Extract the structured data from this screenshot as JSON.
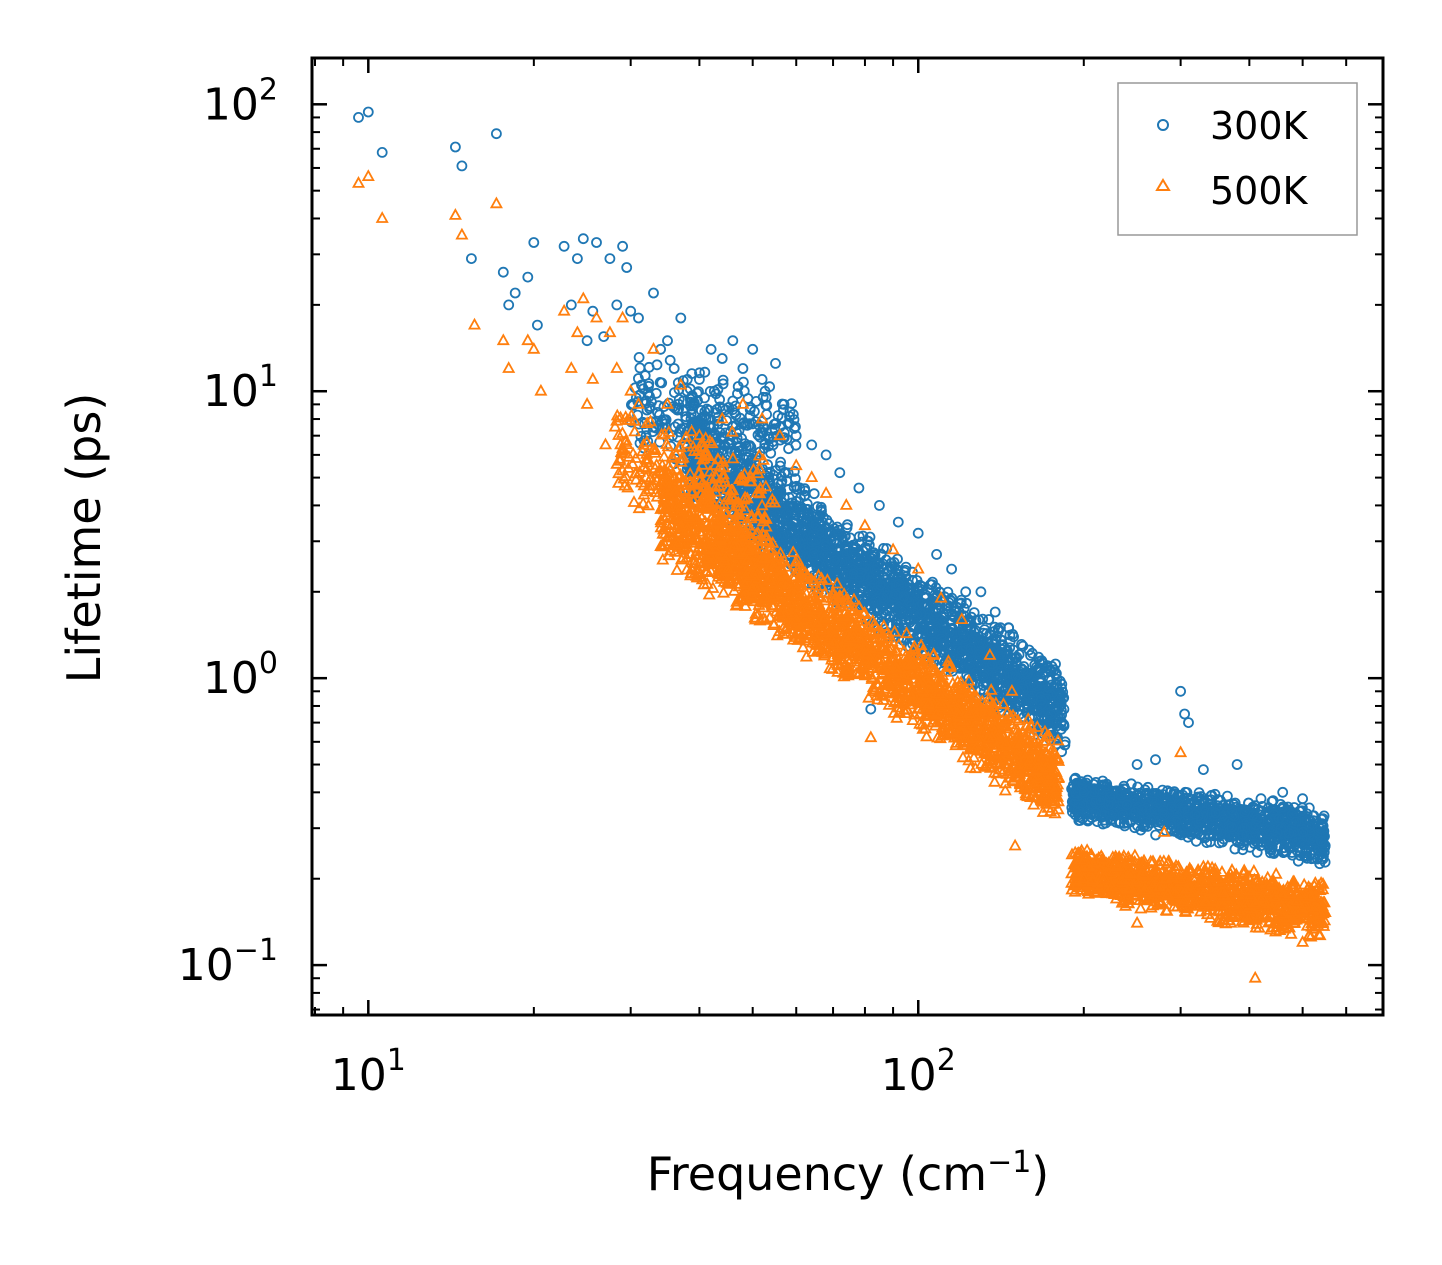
{
  "chart_data": {
    "type": "scatter",
    "xscale": "log",
    "yscale": "log",
    "xlabel": "Frequency (cm",
    "xlabel_sup": "−1",
    "xlabel_close": ")",
    "ylabel": "Lifetime (ps)",
    "xlim": [
      7.9,
      700
    ],
    "ylim": [
      0.067,
      145
    ],
    "x_ticks": [
      {
        "value": 10,
        "base": "10",
        "exp": "1"
      },
      {
        "value": 100,
        "base": "10",
        "exp": "2"
      }
    ],
    "y_ticks": [
      {
        "value": 0.1,
        "base": "10",
        "exp": "−1"
      },
      {
        "value": 1,
        "base": "10",
        "exp": "0"
      },
      {
        "value": 10,
        "base": "10",
        "exp": "1"
      },
      {
        "value": 100,
        "base": "10",
        "exp": "2"
      }
    ],
    "legend_position": "top-right",
    "series": [
      {
        "name": "300K",
        "marker": "circle",
        "color": "#1f77b4",
        "points": [
          [
            9.6,
            90
          ],
          [
            10.0,
            94
          ],
          [
            10.6,
            68
          ],
          [
            14.4,
            71
          ],
          [
            14.8,
            61
          ],
          [
            15.4,
            29
          ],
          [
            17.1,
            79
          ],
          [
            17.6,
            26
          ],
          [
            18.0,
            20
          ],
          [
            18.5,
            22
          ],
          [
            19.5,
            25
          ],
          [
            20.0,
            33
          ],
          [
            20.3,
            17
          ],
          [
            22.7,
            32
          ],
          [
            23.4,
            20
          ],
          [
            24.0,
            29
          ],
          [
            24.6,
            34
          ],
          [
            25.0,
            15
          ],
          [
            25.6,
            19
          ],
          [
            26.0,
            33
          ],
          [
            26.8,
            15.5
          ],
          [
            27.5,
            29
          ],
          [
            28.3,
            20
          ],
          [
            29.0,
            32
          ],
          [
            29.5,
            27
          ],
          [
            30.0,
            19
          ],
          [
            31.0,
            18
          ],
          [
            32.0,
            7
          ],
          [
            33.0,
            22
          ],
          [
            34.0,
            14
          ],
          [
            35.0,
            15
          ],
          [
            36.0,
            12
          ],
          [
            37.0,
            18
          ],
          [
            38.0,
            10
          ],
          [
            40.0,
            11
          ],
          [
            42.0,
            14
          ],
          [
            44.0,
            13
          ],
          [
            46.0,
            15
          ],
          [
            48.0,
            12
          ],
          [
            50.0,
            14
          ],
          [
            52.0,
            11
          ],
          [
            55.0,
            12.5
          ],
          [
            57.0,
            9
          ],
          [
            60.0,
            7
          ],
          [
            64.0,
            6.5
          ],
          [
            68.0,
            6
          ],
          [
            72.0,
            5.2
          ],
          [
            78.0,
            4.6
          ],
          [
            82.0,
            0.78
          ],
          [
            85.0,
            4
          ],
          [
            92.0,
            3.5
          ],
          [
            100.0,
            3.2
          ],
          [
            108.0,
            2.7
          ],
          [
            115.0,
            2.4
          ],
          [
            122.0,
            2.0
          ],
          [
            130.0,
            2.0
          ],
          [
            138.0,
            1.7
          ],
          [
            146.0,
            1.5
          ],
          [
            160.0,
            1.2
          ],
          [
            175.0,
            1.1
          ],
          [
            185.0,
            0.6
          ],
          [
            200.0,
            0.4
          ],
          [
            220.0,
            0.42
          ],
          [
            250.0,
            0.5
          ],
          [
            270.0,
            0.52
          ],
          [
            300.0,
            0.9
          ],
          [
            305.0,
            0.75
          ],
          [
            310.0,
            0.7
          ],
          [
            330.0,
            0.48
          ],
          [
            380.0,
            0.5
          ],
          [
            420.0,
            0.38
          ],
          [
            460.0,
            0.4
          ],
          [
            500.0,
            0.38
          ],
          [
            540.0,
            0.27
          ]
        ],
        "bands": [
          {
            "x0": 30,
            "x1": 60,
            "ylo0": 6.0,
            "yhi0": 14,
            "ylo1": 3.8,
            "yhi1": 11,
            "n": 280
          },
          {
            "x0": 38,
            "x1": 185,
            "ylo0": 4.0,
            "yhi0": 9.0,
            "ylo1": 0.52,
            "yhi1": 1.1,
            "n": 2100
          },
          {
            "x0": 190,
            "x1": 550,
            "ylo0": 0.32,
            "yhi0": 0.46,
            "ylo1": 0.22,
            "yhi1": 0.36,
            "n": 1200
          }
        ]
      },
      {
        "name": "500K",
        "marker": "triangle",
        "color": "#ff7f0e",
        "points": [
          [
            9.6,
            53
          ],
          [
            10.0,
            56
          ],
          [
            10.6,
            40
          ],
          [
            14.4,
            41
          ],
          [
            14.8,
            35
          ],
          [
            15.6,
            17
          ],
          [
            17.1,
            45
          ],
          [
            17.6,
            15
          ],
          [
            18.0,
            12
          ],
          [
            19.5,
            15
          ],
          [
            20.0,
            14
          ],
          [
            20.6,
            10
          ],
          [
            22.7,
            19
          ],
          [
            23.4,
            12
          ],
          [
            24.0,
            16
          ],
          [
            24.6,
            21
          ],
          [
            25.0,
            9
          ],
          [
            25.6,
            11
          ],
          [
            26.0,
            18
          ],
          [
            27.0,
            6.5
          ],
          [
            27.5,
            16
          ],
          [
            28.3,
            12
          ],
          [
            29.0,
            18
          ],
          [
            30.0,
            10
          ],
          [
            31.0,
            9
          ],
          [
            32.0,
            5
          ],
          [
            33.0,
            14
          ],
          [
            35.0,
            9
          ],
          [
            37.0,
            10.5
          ],
          [
            40.0,
            7
          ],
          [
            44.0,
            8
          ],
          [
            48.0,
            9
          ],
          [
            52.0,
            8
          ],
          [
            56.0,
            7
          ],
          [
            60.0,
            5.5
          ],
          [
            64.0,
            5.0
          ],
          [
            68.0,
            4.4
          ],
          [
            74.0,
            4.0
          ],
          [
            80.0,
            3.4
          ],
          [
            82.0,
            0.62
          ],
          [
            90.0,
            2.8
          ],
          [
            100.0,
            2.4
          ],
          [
            110.0,
            1.9
          ],
          [
            120.0,
            1.6
          ],
          [
            135.0,
            1.2
          ],
          [
            148.0,
            0.9
          ],
          [
            160.0,
            0.68
          ],
          [
            170.0,
            0.55
          ],
          [
            180.0,
            0.45
          ],
          [
            150.0,
            0.26
          ],
          [
            200.0,
            0.2
          ],
          [
            230.0,
            0.22
          ],
          [
            250.0,
            0.14
          ],
          [
            280.0,
            0.29
          ],
          [
            300.0,
            0.55
          ],
          [
            330.0,
            0.22
          ],
          [
            380.0,
            0.16
          ],
          [
            410.0,
            0.09
          ],
          [
            450.0,
            0.14
          ],
          [
            500.0,
            0.12
          ],
          [
            540.0,
            0.15
          ]
        ],
        "bands": [
          {
            "x0": 28,
            "x1": 55,
            "ylo0": 4.0,
            "yhi0": 9.0,
            "ylo1": 2.1,
            "yhi1": 7.0,
            "n": 280
          },
          {
            "x0": 34,
            "x1": 180,
            "ylo0": 2.5,
            "yhi0": 6.0,
            "ylo1": 0.3,
            "yhi1": 0.62,
            "n": 2100
          },
          {
            "x0": 190,
            "x1": 550,
            "ylo0": 0.17,
            "yhi0": 0.26,
            "ylo1": 0.12,
            "yhi1": 0.2,
            "n": 1200
          }
        ]
      }
    ]
  }
}
